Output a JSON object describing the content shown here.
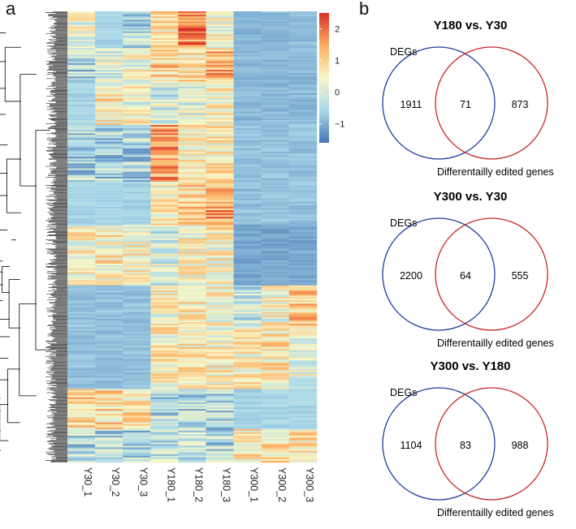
{
  "panel_labels": {
    "a": "a",
    "b": "b"
  },
  "heatmap": {
    "samples": [
      "Y30_1",
      "Y30_2",
      "Y30_3",
      "Y180_1",
      "Y180_2",
      "Y180_3",
      "Y300_1",
      "Y300_2",
      "Y300_3"
    ],
    "legend": {
      "ticks": [
        "2",
        "1",
        "0",
        "−1"
      ],
      "min": -1.6,
      "max": 2.5,
      "colors": [
        "#4575b4",
        "#abd9e9",
        "#f7f7c8",
        "#fdae61",
        "#d73027"
      ]
    },
    "clusters": [
      {
        "rows": 22,
        "levels": [
          0.2,
          -0.6,
          -0.5,
          0.7,
          1.8,
          0.4,
          -0.9,
          -0.9,
          -0.9
        ]
      },
      {
        "rows": 20,
        "levels": [
          -0.5,
          0.1,
          0.3,
          0.9,
          0.8,
          1.3,
          -0.9,
          -0.9,
          -0.9
        ]
      },
      {
        "rows": 26,
        "levels": [
          -0.6,
          0.6,
          0.4,
          0.0,
          0.1,
          0.5,
          -0.9,
          -0.9,
          -0.9
        ]
      },
      {
        "rows": 34,
        "levels": [
          -0.5,
          -0.5,
          -0.5,
          1.5,
          0.6,
          0.6,
          -0.8,
          -0.8,
          -0.8
        ]
      },
      {
        "rows": 26,
        "levels": [
          -0.6,
          -0.6,
          -0.6,
          0.5,
          0.9,
          1.5,
          -0.8,
          -0.8,
          -0.8
        ]
      },
      {
        "rows": 36,
        "levels": [
          0.5,
          0.6,
          0.5,
          0.0,
          0.5,
          0.5,
          -1.1,
          -1.1,
          -1.1
        ]
      },
      {
        "rows": 26,
        "levels": [
          -0.8,
          -0.8,
          -0.8,
          0.4,
          0.6,
          0.4,
          -0.2,
          0.4,
          1.1
        ]
      },
      {
        "rows": 36,
        "levels": [
          -0.8,
          -0.8,
          -0.8,
          0.6,
          0.6,
          0.5,
          0.6,
          0.7,
          0.1
        ]
      },
      {
        "rows": 24,
        "levels": [
          0.9,
          0.9,
          0.9,
          -0.5,
          -0.5,
          -0.5,
          -0.6,
          -0.6,
          -0.6
        ]
      },
      {
        "rows": 20,
        "levels": [
          -0.4,
          -0.4,
          -0.5,
          -0.3,
          -0.3,
          -0.4,
          0.6,
          0.7,
          0.6
        ]
      }
    ]
  },
  "venns": [
    {
      "title": "Y180 vs. Y30",
      "left_label": "DEGs",
      "right_label": "Differentailly edited genes",
      "left_only": "1911",
      "both": "71",
      "right_only": "873"
    },
    {
      "title": "Y300 vs. Y30",
      "left_label": "DEGs",
      "right_label": "Differentailly edited genes",
      "left_only": "2200",
      "both": "64",
      "right_only": "555"
    },
    {
      "title": "Y300 vs. Y180",
      "left_label": "DEGs",
      "right_label": "Differentailly edited genes",
      "left_only": "1104",
      "both": "83",
      "right_only": "988"
    }
  ],
  "colors": {
    "deg_circle": "#1f3d9c",
    "edited_circle": "#c8262b"
  }
}
